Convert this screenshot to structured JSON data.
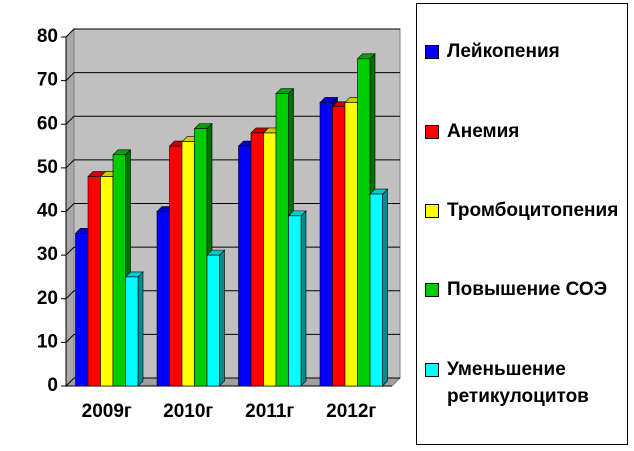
{
  "chart_data": {
    "type": "bar3d",
    "categories": [
      "2009г",
      "2010г",
      "2011г",
      "2012г"
    ],
    "series": [
      {
        "name": "Лейкопения",
        "color": "#0000ff",
        "values": [
          35,
          40,
          55,
          65
        ]
      },
      {
        "name": "Анемия",
        "color": "#ff0000",
        "values": [
          48,
          55,
          58,
          64
        ]
      },
      {
        "name": "Тромбоцитопения",
        "color": "#ffff00",
        "values": [
          48,
          56,
          58,
          65
        ]
      },
      {
        "name": "Повышение СОЭ",
        "color": "#00cc00",
        "values": [
          53,
          59,
          67,
          75
        ]
      },
      {
        "name": "Уменьшение ретикулоцитов",
        "color": "#00ffff",
        "values": [
          25,
          30,
          39,
          44
        ]
      }
    ],
    "ylim": [
      0,
      80
    ],
    "yticks": [
      0,
      10,
      20,
      30,
      40,
      50,
      60,
      70,
      80
    ],
    "grid": true
  }
}
